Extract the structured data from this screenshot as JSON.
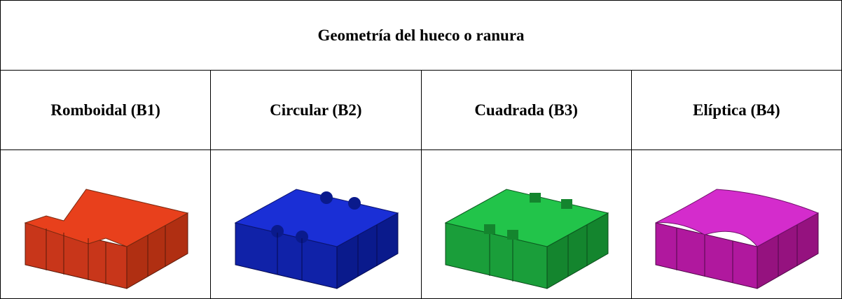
{
  "table": {
    "title": "Geometría del hueco o ranura",
    "columns": [
      "Romboidal (B1)",
      "Circular (B2)",
      "Cuadrada (B3)",
      "Elíptica (B4)"
    ]
  }
}
